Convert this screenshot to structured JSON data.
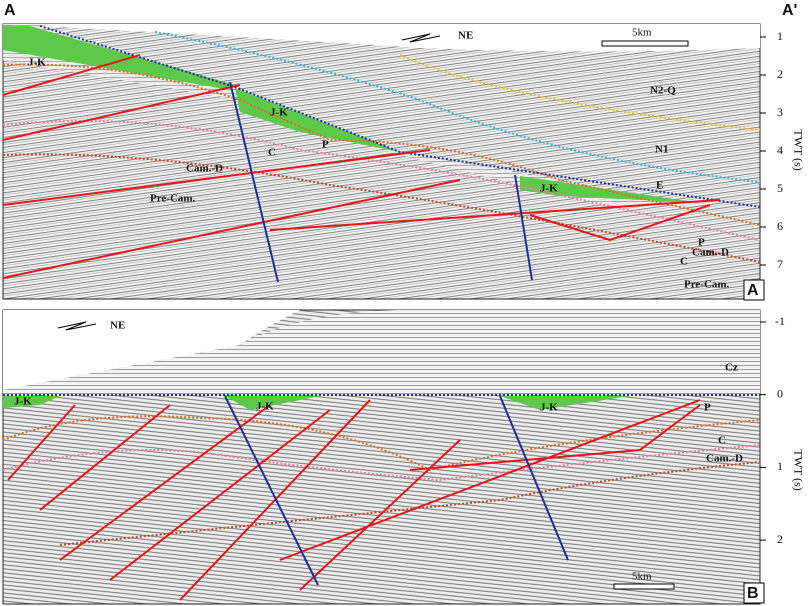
{
  "header": {
    "left": "A",
    "right": "A'"
  },
  "panels": [
    {
      "label": "A",
      "north": "NE",
      "scale": "5km",
      "axis_title": "TWT (s)",
      "ticks": [
        "1",
        "2",
        "3",
        "4",
        "5",
        "6",
        "7"
      ],
      "units": [
        "J-K",
        "N2-Q",
        "N1",
        "J-K",
        "P",
        "C",
        "Cam.-D",
        "Pre-Cam.",
        "J-K",
        "E",
        "P",
        "C",
        "Cam.-D",
        "Pre-Cam."
      ]
    },
    {
      "label": "B",
      "north": "NE",
      "scale": "5km",
      "axis_title": "TWT (s)",
      "ticks": [
        "-1",
        "0",
        "1",
        "2"
      ],
      "units": [
        "Cz",
        "J-K",
        "J-K",
        "J-K",
        "P",
        "C",
        "Cam.-D"
      ]
    }
  ]
}
